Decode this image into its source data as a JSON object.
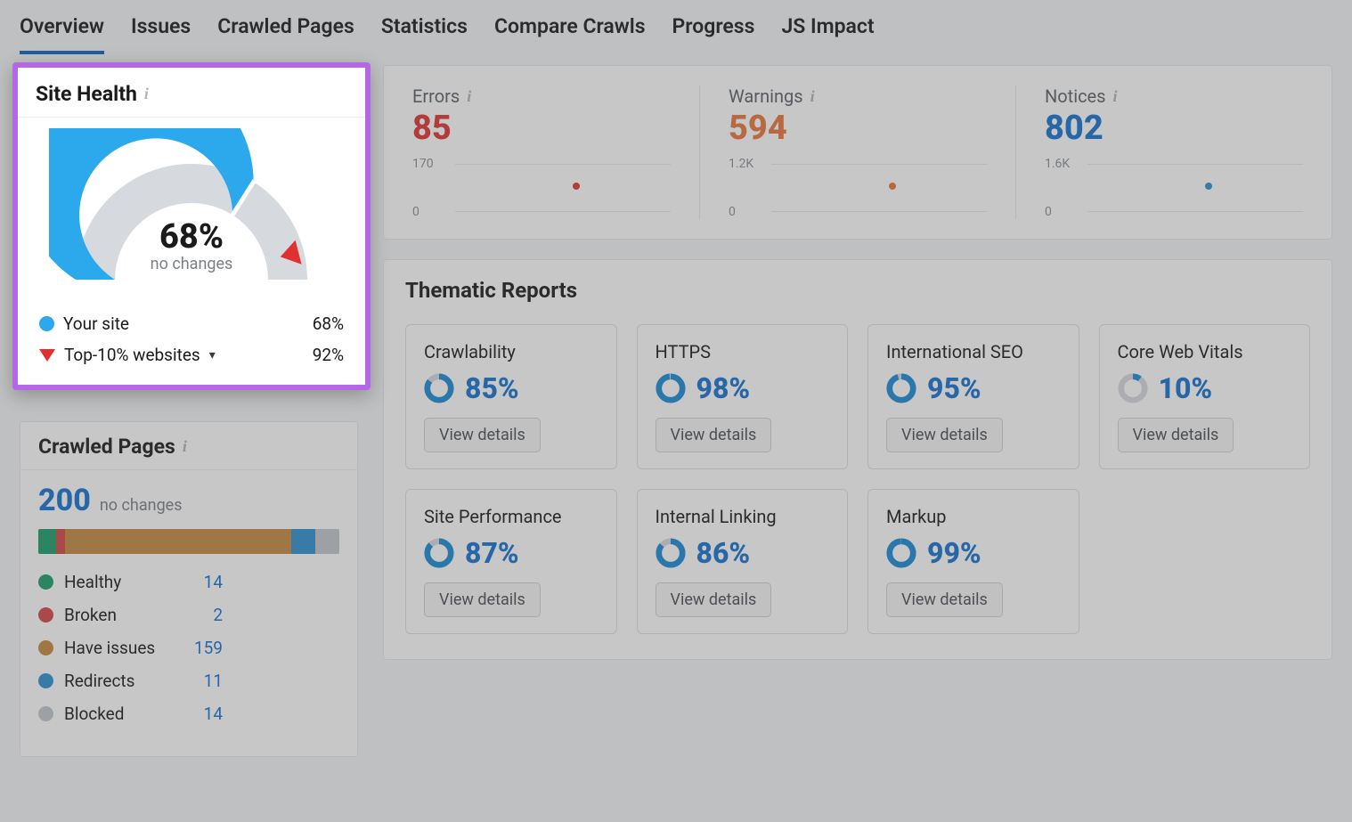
{
  "tabs": {
    "items": [
      "Overview",
      "Issues",
      "Crawled Pages",
      "Statistics",
      "Compare Crawls",
      "Progress",
      "JS Impact"
    ],
    "activeIndex": 0,
    "active_border_color": "#0b64c0"
  },
  "site_health": {
    "title": "Site Health",
    "gauge": {
      "value_text": "68%",
      "value_pct": 68,
      "subtext": "no changes",
      "arc_main_color": "#2ba9ec",
      "arc_bg_color": "#d6d9dd",
      "pointer_color": "#e03131",
      "pointer_pct": 92
    },
    "legend": {
      "your_site": {
        "label": "Your site",
        "color": "#2ba9ec",
        "value": "68%"
      },
      "top10": {
        "label": "Top-10% websites",
        "color": "#e03131",
        "value": "92%"
      }
    },
    "highlight_border_color": "#b468e6"
  },
  "crawled_pages": {
    "title": "Crawled Pages",
    "count": "200",
    "subtext": "no changes",
    "count_color": "#1472d0",
    "bar_segments": [
      {
        "key": "healthy",
        "color": "#1a9e6b",
        "width_pct": 6
      },
      {
        "key": "broken",
        "color": "#d64545",
        "width_pct": 3
      },
      {
        "key": "have_issues",
        "color": "#c48a3f",
        "width_pct": 75
      },
      {
        "key": "redirects",
        "color": "#2f8fd0",
        "width_pct": 8
      },
      {
        "key": "blocked",
        "color": "#c2c6cc",
        "width_pct": 8
      }
    ],
    "legend": [
      {
        "label": "Healthy",
        "color": "#1a9e6b",
        "value": "14"
      },
      {
        "label": "Broken",
        "color": "#d64545",
        "value": "2"
      },
      {
        "label": "Have issues",
        "color": "#c48a3f",
        "value": "159"
      },
      {
        "label": "Redirects",
        "color": "#2f8fd0",
        "value": "11"
      },
      {
        "label": "Blocked",
        "color": "#c2c6cc",
        "value": "14"
      }
    ]
  },
  "top_stats": {
    "errors": {
      "label": "Errors",
      "value": "85",
      "color": "#e03131",
      "ymax": "170",
      "ymin": "0",
      "dot_color": "#e03131"
    },
    "warnings": {
      "label": "Warnings",
      "value": "594",
      "color": "#e8773c",
      "ymax": "1.2K",
      "ymin": "0",
      "dot_color": "#e8773c"
    },
    "notices": {
      "label": "Notices",
      "value": "802",
      "color": "#1472d0",
      "ymax": "1.6K",
      "ymin": "0",
      "dot_color": "#2f8fd0"
    }
  },
  "thematic": {
    "title": "Thematic Reports",
    "button_label": "View details",
    "donut_track_color": "#d6d9dd",
    "donut_fill_color": "#1989d8",
    "pct_color": "#1472d0",
    "cards": [
      {
        "title": "Crawlability",
        "pct": 85,
        "pct_text": "85%"
      },
      {
        "title": "HTTPS",
        "pct": 98,
        "pct_text": "98%"
      },
      {
        "title": "International SEO",
        "pct": 95,
        "pct_text": "95%"
      },
      {
        "title": "Core Web Vitals",
        "pct": 10,
        "pct_text": "10%"
      },
      {
        "title": "Site Performance",
        "pct": 87,
        "pct_text": "87%"
      },
      {
        "title": "Internal Linking",
        "pct": 86,
        "pct_text": "86%"
      },
      {
        "title": "Markup",
        "pct": 99,
        "pct_text": "99%"
      }
    ]
  },
  "colors": {
    "page_bg": "#f4f5f7",
    "card_border": "#e6e8eb",
    "text": "#1a1a1a",
    "muted": "#7a7f85"
  }
}
